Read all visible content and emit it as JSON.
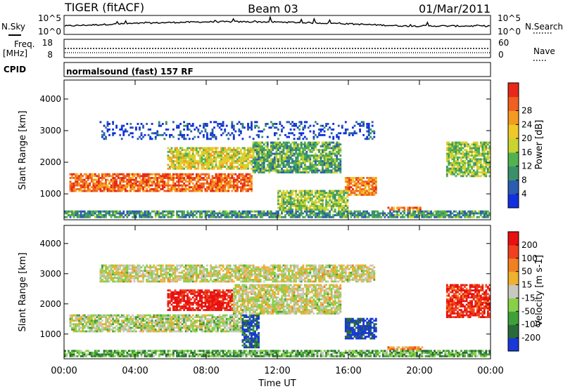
{
  "header": {
    "radar": "TIGER (fitACF)",
    "beam": "Beam 03",
    "date": "01/Mar/2011"
  },
  "summary": {
    "nsky_label": "N.Sky",
    "nsky_ticks": [
      "10^5",
      "10^0"
    ],
    "nsearch_label": "N.Search",
    "nsearch_ticks": [
      "10^5",
      "10^0"
    ],
    "freq_label": "Freq.",
    "freq_unit": "[MHz]",
    "freq_ticks": [
      "18",
      "8"
    ],
    "nave_label": "Nave",
    "nave_ticks": [
      "60",
      "0"
    ],
    "cpid_label": "CPID",
    "cpid_text": "normalsound (fast) 157 RF"
  },
  "chart_data": [
    {
      "type": "heatmap",
      "name": "power",
      "xlabel": "",
      "ylabel": "Slant Range [km]",
      "x_ticks": [
        "00:00",
        "04:00",
        "08:00",
        "12:00",
        "16:00",
        "20:00",
        "00:00"
      ],
      "y_ticks": [
        1000,
        2000,
        3000,
        4000
      ],
      "ylim": [
        180,
        4600
      ],
      "xlim_hours": [
        0,
        24
      ],
      "colorbar": {
        "label": "Power [dB]",
        "ticks": [
          4,
          8,
          12,
          16,
          20,
          24,
          28
        ],
        "colors": [
          "#1030e0",
          "#2a5cb0",
          "#3b8f6a",
          "#52b24f",
          "#c8d430",
          "#f0c828",
          "#f59a20",
          "#f06020",
          "#e82818"
        ]
      },
      "regions": [
        {
          "t0": 0.3,
          "t1": 10.6,
          "r0": 1050,
          "r1": 1650,
          "level": 0.82
        },
        {
          "t0": 5.8,
          "t1": 10.6,
          "r0": 1750,
          "r1": 2450,
          "level": 0.55
        },
        {
          "t0": 10.6,
          "t1": 15.6,
          "r0": 1600,
          "r1": 2600,
          "level": 0.35
        },
        {
          "t0": 15.8,
          "t1": 17.6,
          "r0": 900,
          "r1": 1500,
          "level": 0.75
        },
        {
          "t0": 18.2,
          "t1": 20.2,
          "r0": 250,
          "r1": 550,
          "level": 0.8
        },
        {
          "t0": 12.0,
          "t1": 16.0,
          "r0": 400,
          "r1": 1100,
          "level": 0.45
        },
        {
          "t0": 21.5,
          "t1": 24.0,
          "r0": 1500,
          "r1": 2600,
          "level": 0.45
        },
        {
          "t0": 0.0,
          "t1": 24.0,
          "r0": 200,
          "r1": 450,
          "level": 0.3
        },
        {
          "t0": 2.0,
          "t1": 17.5,
          "r0": 2700,
          "r1": 3300,
          "level": 0.1
        }
      ]
    },
    {
      "type": "heatmap",
      "name": "velocity",
      "xlabel": "Time UT",
      "ylabel": "Slant Range [km]",
      "x_ticks": [
        "00:00",
        "04:00",
        "08:00",
        "12:00",
        "16:00",
        "20:00",
        "00:00"
      ],
      "y_ticks": [
        1000,
        2000,
        3000,
        4000
      ],
      "ylim": [
        180,
        4600
      ],
      "xlim_hours": [
        0,
        24
      ],
      "colorbar": {
        "label": "Velocity [m s-1]",
        "ticks": [
          200,
          100,
          50,
          15,
          -15,
          -50,
          -100,
          -200
        ],
        "colors": [
          "#1838d8",
          "#2a6a38",
          "#3fa03a",
          "#88d048",
          "#c8c8c0",
          "#f0b030",
          "#f08020",
          "#f04020",
          "#e81010"
        ]
      },
      "regions": [
        {
          "t0": 0.3,
          "t1": 10.6,
          "r0": 1050,
          "r1": 1650,
          "level": 0.45
        },
        {
          "t0": 5.8,
          "t1": 9.5,
          "r0": 1750,
          "r1": 2450,
          "level": 0.95
        },
        {
          "t0": 9.5,
          "t1": 15.6,
          "r0": 1600,
          "r1": 2600,
          "level": 0.5
        },
        {
          "t0": 15.8,
          "t1": 17.6,
          "r0": 800,
          "r1": 1500,
          "level": 0.05
        },
        {
          "t0": 10.0,
          "t1": 11.0,
          "r0": 500,
          "r1": 1600,
          "level": 0.1
        },
        {
          "t0": 18.2,
          "t1": 20.2,
          "r0": 250,
          "r1": 550,
          "level": 0.7
        },
        {
          "t0": 21.5,
          "t1": 24.0,
          "r0": 1500,
          "r1": 2600,
          "level": 0.9
        },
        {
          "t0": 0.0,
          "t1": 24.0,
          "r0": 200,
          "r1": 450,
          "level": 0.3
        },
        {
          "t0": 2.0,
          "t1": 17.5,
          "r0": 2700,
          "r1": 3300,
          "level": 0.5
        }
      ]
    }
  ]
}
